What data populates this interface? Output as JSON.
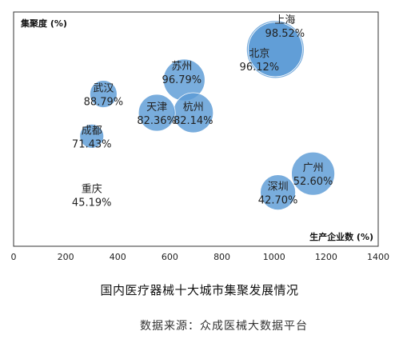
{
  "chart_data": {
    "type": "scatter",
    "title": "国内医疗器械十大城市集聚发展情况",
    "source": "数据来源：众成医械大数据平台",
    "xlabel": "生产企业数 (%)",
    "ylabel": "集聚度 (%)",
    "xlim": [
      0,
      1400
    ],
    "xticks": [
      0,
      200,
      400,
      600,
      800,
      1000,
      1200,
      1400
    ],
    "xtick_labels": [
      "0",
      "200",
      "400",
      "600",
      "800",
      "1000",
      "1200",
      "1400"
    ],
    "grid": false,
    "bubble_color": "#5b9bd5",
    "points": [
      {
        "name": "上海",
        "x": 1005,
        "y": 98.52,
        "pos": 84,
        "size": 36,
        "label": "98.52%"
      },
      {
        "name": "苏州",
        "x": 655,
        "y": 96.79,
        "pos": 71,
        "size": 26,
        "label": "96.79%"
      },
      {
        "name": "北京",
        "x": 1005,
        "y": 96.12,
        "pos": 84,
        "size": 34,
        "label": "96.12%"
      },
      {
        "name": "武汉",
        "x": 345,
        "y": 88.79,
        "pos": 65,
        "size": 17,
        "label": "88.79%"
      },
      {
        "name": "杭州",
        "x": 690,
        "y": 82.14,
        "pos": 57,
        "size": 25,
        "label": "82.14%"
      },
      {
        "name": "天津",
        "x": 550,
        "y": 82.36,
        "pos": 57,
        "size": 23,
        "label": "82.36%"
      },
      {
        "name": "成都",
        "x": 300,
        "y": 71.43,
        "pos": 47,
        "size": 15,
        "label": "71.43%"
      },
      {
        "name": "广州",
        "x": 1150,
        "y": 52.6,
        "pos": 31,
        "size": 27,
        "label": "52.60%"
      },
      {
        "name": "深圳",
        "x": 1015,
        "y": 42.7,
        "pos": 23,
        "size": 22,
        "label": "42.70%"
      },
      {
        "name": "重庆",
        "x": 300,
        "y": 45.19,
        "pos": 22,
        "size": 0,
        "label": "45.19%"
      }
    ]
  }
}
